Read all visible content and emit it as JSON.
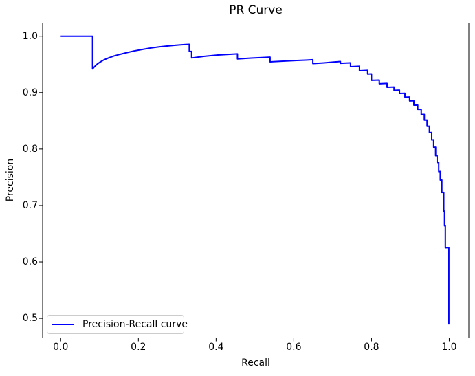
{
  "chart_data": {
    "type": "line",
    "title": "PR Curve",
    "xlabel": "Recall",
    "ylabel": "Precision",
    "grid": false,
    "legend_position": "lower left",
    "legend_border_color": "#cccccc",
    "axis_color": "#000000",
    "background_color": "#ffffff",
    "xlim": [
      -0.0465,
      1.0505
    ],
    "ylim": [
      0.4654,
      1.0234
    ],
    "xticks": [
      0.0,
      0.2,
      0.4,
      0.6,
      0.8,
      1.0
    ],
    "yticks": [
      0.5,
      0.6,
      0.7,
      0.8,
      0.9,
      1.0
    ],
    "xtick_labels": [
      "0.0",
      "0.2",
      "0.4",
      "0.6",
      "0.8",
      "1.0"
    ],
    "ytick_labels": [
      "0.5",
      "0.6",
      "0.7",
      "0.8",
      "0.9",
      "1.0"
    ],
    "series": [
      {
        "name": "Precision-Recall curve",
        "color": "#0000ff",
        "linewidth": 2,
        "points": [
          [
            0.0,
            1.0
          ],
          [
            0.082,
            1.0
          ],
          [
            0.082,
            0.942
          ],
          [
            0.087,
            0.946
          ],
          [
            0.093,
            0.95
          ],
          [
            0.101,
            0.954
          ],
          [
            0.111,
            0.958
          ],
          [
            0.123,
            0.9615
          ],
          [
            0.137,
            0.965
          ],
          [
            0.153,
            0.968
          ],
          [
            0.171,
            0.971
          ],
          [
            0.19,
            0.974
          ],
          [
            0.21,
            0.9765
          ],
          [
            0.231,
            0.979
          ],
          [
            0.253,
            0.981
          ],
          [
            0.276,
            0.9828
          ],
          [
            0.3,
            0.9843
          ],
          [
            0.318,
            0.9852
          ],
          [
            0.331,
            0.9857
          ],
          [
            0.331,
            0.973
          ],
          [
            0.337,
            0.973
          ],
          [
            0.337,
            0.9615
          ],
          [
            0.37,
            0.9645
          ],
          [
            0.405,
            0.9668
          ],
          [
            0.435,
            0.968
          ],
          [
            0.455,
            0.9688
          ],
          [
            0.455,
            0.9598
          ],
          [
            0.49,
            0.9612
          ],
          [
            0.518,
            0.9622
          ],
          [
            0.539,
            0.963
          ],
          [
            0.539,
            0.9545
          ],
          [
            0.572,
            0.9558
          ],
          [
            0.608,
            0.957
          ],
          [
            0.635,
            0.9578
          ],
          [
            0.649,
            0.9583
          ],
          [
            0.649,
            0.9515
          ],
          [
            0.678,
            0.9528
          ],
          [
            0.703,
            0.9542
          ],
          [
            0.72,
            0.9552
          ],
          [
            0.72,
            0.952
          ],
          [
            0.746,
            0.9528
          ],
          [
            0.746,
            0.946
          ],
          [
            0.769,
            0.9468
          ],
          [
            0.769,
            0.9388
          ],
          [
            0.79,
            0.9395
          ],
          [
            0.79,
            0.933
          ],
          [
            0.8,
            0.9333
          ],
          [
            0.8,
            0.9218
          ],
          [
            0.82,
            0.9223
          ],
          [
            0.82,
            0.9158
          ],
          [
            0.84,
            0.9163
          ],
          [
            0.84,
            0.9095
          ],
          [
            0.858,
            0.91
          ],
          [
            0.858,
            0.904
          ],
          [
            0.872,
            0.9044
          ],
          [
            0.872,
            0.8985
          ],
          [
            0.886,
            0.8988
          ],
          [
            0.886,
            0.892
          ],
          [
            0.898,
            0.8923
          ],
          [
            0.898,
            0.8852
          ],
          [
            0.909,
            0.8855
          ],
          [
            0.909,
            0.8778
          ],
          [
            0.919,
            0.878
          ],
          [
            0.919,
            0.8703
          ],
          [
            0.928,
            0.8705
          ],
          [
            0.928,
            0.8612
          ],
          [
            0.936,
            0.8614
          ],
          [
            0.936,
            0.8513
          ],
          [
            0.943,
            0.8515
          ],
          [
            0.943,
            0.8403
          ],
          [
            0.949,
            0.8405
          ],
          [
            0.949,
            0.8292
          ],
          [
            0.955,
            0.8294
          ],
          [
            0.955,
            0.8162
          ],
          [
            0.96,
            0.8164
          ],
          [
            0.96,
            0.8032
          ],
          [
            0.965,
            0.8034
          ],
          [
            0.965,
            0.7882
          ],
          [
            0.969,
            0.7884
          ],
          [
            0.969,
            0.7762
          ],
          [
            0.973,
            0.7764
          ],
          [
            0.973,
            0.76
          ],
          [
            0.977,
            0.7602
          ],
          [
            0.977,
            0.745
          ],
          [
            0.981,
            0.7452
          ],
          [
            0.981,
            0.723
          ],
          [
            0.986,
            0.7232
          ],
          [
            0.986,
            0.69
          ],
          [
            0.988,
            0.69
          ],
          [
            0.988,
            0.664
          ],
          [
            0.99,
            0.6642
          ],
          [
            0.99,
            0.625
          ],
          [
            0.994,
            0.6252
          ],
          [
            0.999,
            0.6252
          ],
          [
            0.999,
            0.489
          ]
        ]
      }
    ]
  }
}
